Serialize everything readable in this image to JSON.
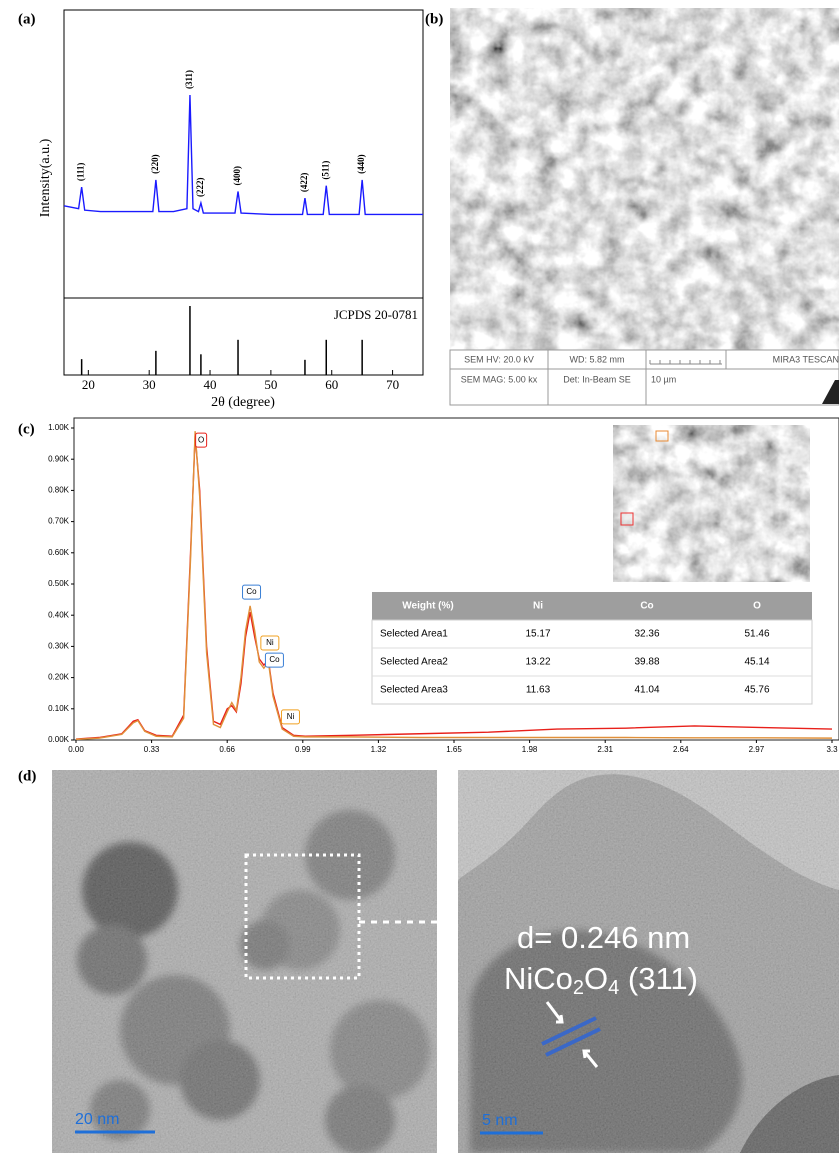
{
  "panel_labels": [
    "(a)",
    "(b)",
    "(c)",
    "(d)"
  ],
  "chart_data": [
    {
      "type": "line",
      "x_label": "2θ (degree)",
      "y_label": "Intensity(a.u.)",
      "xlim": [
        16,
        75
      ],
      "xticks": [
        20,
        30,
        40,
        50,
        60,
        70
      ],
      "ylim": [
        0,
        100
      ],
      "x": [
        16,
        18.4,
        18.9,
        19.4,
        22,
        25,
        30.6,
        31.1,
        31.6,
        34,
        36.2,
        36.7,
        37.2,
        38.1,
        38.5,
        38.9,
        41,
        44.1,
        44.6,
        45.1,
        50,
        55.2,
        55.6,
        56,
        58.6,
        59.1,
        59.6,
        62,
        64.5,
        65,
        65.5,
        70,
        75
      ],
      "series": [
        {
          "color": "#1a1aff",
          "values": [
            32,
            31,
            38.5,
            30.5,
            30,
            30,
            30,
            41,
            30,
            30,
            31,
            70.5,
            31,
            30,
            33,
            29.5,
            29.5,
            29.5,
            37,
            29.5,
            29,
            29,
            34.7,
            29,
            29,
            39,
            29,
            29,
            29,
            41,
            29,
            29,
            29
          ]
        }
      ],
      "annotations": [
        {
          "text": "(111)",
          "x": 18.9
        },
        {
          "text": "(220)",
          "x": 31.1
        },
        {
          "text": "(311)",
          "x": 36.7
        },
        {
          "text": "(222)",
          "x": 38.5
        },
        {
          "text": "(400)",
          "x": 44.6
        },
        {
          "text": "(422)",
          "x": 55.6
        },
        {
          "text": "(511)",
          "x": 59.1
        },
        {
          "text": "(440)",
          "x": 65
        }
      ]
    },
    {
      "type": "stick",
      "label": "JCPDS 20-0781",
      "xlim": [
        16,
        75
      ],
      "ylim": [
        0,
        100
      ],
      "color": "#000000",
      "x": [
        18.9,
        31.1,
        36.7,
        38.5,
        44.6,
        55.6,
        59.1,
        65
      ],
      "values": [
        23,
        35,
        100,
        30,
        51,
        22,
        51,
        51
      ]
    },
    {
      "type": "line",
      "xlim": [
        0,
        3.3
      ],
      "xticks": [
        {
          "value": 0,
          "label": "0.00"
        },
        0.33,
        0.66,
        0.99,
        1.32,
        1.65,
        1.98,
        2.31,
        2.64,
        2.97,
        3.3
      ],
      "ylim": [
        0,
        1000
      ],
      "yticks": [
        {
          "value": 0,
          "label": "0.00K"
        },
        {
          "value": 100,
          "label": "0.10K"
        },
        {
          "value": 200,
          "label": "0.20K"
        },
        {
          "value": 300,
          "label": "0.30K"
        },
        {
          "value": 400,
          "label": "0.40K"
        },
        {
          "value": 500,
          "label": "0.50K"
        },
        {
          "value": 600,
          "label": "0.60K"
        },
        {
          "value": 700,
          "label": "0.70K"
        },
        {
          "value": 800,
          "label": "0.80K"
        },
        {
          "value": 900,
          "label": "0.90K"
        },
        {
          "value": 1000,
          "label": "1.00K"
        }
      ],
      "x": [
        0,
        0.1,
        0.2,
        0.25,
        0.27,
        0.3,
        0.35,
        0.42,
        0.47,
        0.5,
        0.52,
        0.54,
        0.57,
        0.6,
        0.63,
        0.66,
        0.68,
        0.7,
        0.72,
        0.74,
        0.76,
        0.78,
        0.8,
        0.82,
        0.84,
        0.86,
        0.9,
        0.95,
        1.0,
        1.2,
        1.5,
        1.8,
        2.1,
        2.4,
        2.7,
        3.0,
        3.3
      ],
      "series": [
        {
          "color": "#e8201a",
          "values": [
            3,
            8,
            20,
            60,
            65,
            30,
            15,
            12,
            80,
            600,
            975,
            800,
            300,
            60,
            50,
            100,
            110,
            90,
            180,
            330,
            410,
            330,
            260,
            240,
            255,
            150,
            40,
            15,
            12,
            15,
            20,
            25,
            35,
            38,
            45,
            40,
            35
          ]
        },
        {
          "color": "#e0903a",
          "values": [
            2,
            6,
            18,
            55,
            62,
            28,
            12,
            10,
            70,
            580,
            990,
            780,
            280,
            50,
            40,
            90,
            120,
            95,
            200,
            350,
            430,
            350,
            250,
            230,
            250,
            140,
            35,
            12,
            10,
            10,
            8,
            8,
            8,
            8,
            7,
            7,
            6
          ]
        }
      ],
      "annotations": [
        {
          "text": "O",
          "x": 0.52,
          "y": 961,
          "color": "#e8201a"
        },
        {
          "text": "Co",
          "x": 0.74,
          "y": 474,
          "color": "#3a7fd5"
        },
        {
          "text": "Ni",
          "x": 0.82,
          "y": 311,
          "color": "#f0a020"
        },
        {
          "text": "Co",
          "x": 0.84,
          "y": 256,
          "color": "#3a7fd5"
        },
        {
          "text": "Ni",
          "x": 0.91,
          "y": 74,
          "color": "#f0a020"
        }
      ]
    }
  ],
  "sem": {
    "hv": "SEM HV: 20.0 kV",
    "wd": "WD: 5.82 mm",
    "brand": "MIRA3 TESCAN",
    "mag": "SEM MAG: 5.00 kx",
    "det": "Det: In-Beam SE",
    "scale": "10 µm"
  },
  "table": {
    "header": [
      "Weight (%)",
      "Ni",
      "Co",
      "O"
    ],
    "rows": [
      [
        "Selected Area1",
        "15.17",
        "32.36",
        "51.46"
      ],
      [
        "Selected Area2",
        "13.22",
        "39.88",
        "45.14"
      ],
      [
        "Selected Area3",
        "11.63",
        "41.04",
        "45.76"
      ]
    ]
  },
  "tem": {
    "scale_left": "20 nm",
    "scale_right": "5 nm",
    "d_spacing": "d= 0.246 nm",
    "phase_parts": [
      "NiCo",
      "2",
      "O",
      "4",
      " (311)"
    ]
  }
}
